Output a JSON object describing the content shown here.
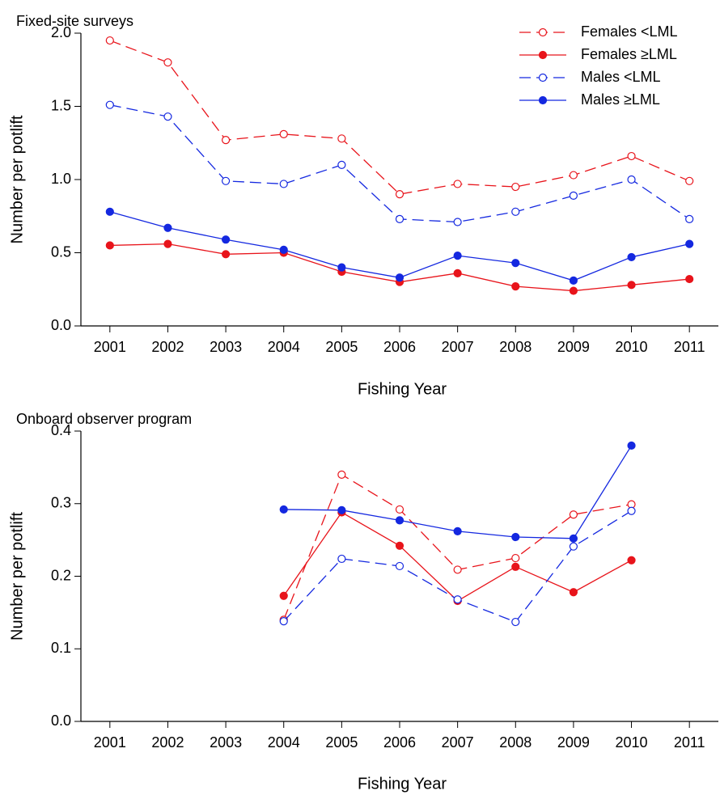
{
  "chart_data": [
    {
      "type": "line",
      "title": "Fixed-site surveys",
      "xlabel": "Fishing Year",
      "ylabel": "Number per potlift",
      "x": [
        2001,
        2002,
        2003,
        2004,
        2005,
        2006,
        2007,
        2008,
        2009,
        2010,
        2011
      ],
      "xlim": [
        2000.5,
        2011.5
      ],
      "xticks": [
        2001,
        2002,
        2003,
        2004,
        2005,
        2006,
        2007,
        2008,
        2009,
        2010,
        2011
      ],
      "ylim": [
        0,
        2
      ],
      "yticks": [
        {
          "value": 0,
          "label": "0.0"
        },
        0.5,
        {
          "value": 1,
          "label": "1.0"
        },
        1.5,
        {
          "value": 2,
          "label": "2.0"
        }
      ],
      "legend": "upper right",
      "series": [
        {
          "name": "Females <LML",
          "color": "#e8141b",
          "marker": "open",
          "dashed": true,
          "values": [
            1.95,
            1.8,
            1.27,
            1.31,
            1.28,
            0.9,
            0.97,
            0.95,
            1.03,
            1.16,
            0.99
          ]
        },
        {
          "name": "Females ≥LML",
          "color": "#e8141b",
          "marker": "filled",
          "dashed": false,
          "values": [
            0.55,
            0.56,
            0.49,
            0.5,
            0.37,
            0.3,
            0.36,
            0.27,
            0.24,
            0.28,
            0.32
          ]
        },
        {
          "name": "Males <LML",
          "color": "#1428e0",
          "marker": "open",
          "dashed": true,
          "values": [
            1.51,
            1.43,
            0.99,
            0.97,
            1.1,
            0.73,
            0.71,
            0.78,
            0.89,
            1.0,
            0.73
          ]
        },
        {
          "name": "Males ≥LML",
          "color": "#1428e0",
          "marker": "filled",
          "dashed": false,
          "values": [
            0.78,
            0.67,
            0.59,
            0.52,
            0.4,
            0.33,
            0.48,
            0.43,
            0.31,
            0.47,
            0.56
          ]
        }
      ]
    },
    {
      "type": "line",
      "title": "Onboard observer program",
      "xlabel": "Fishing Year",
      "ylabel": "Number per potlift",
      "x": [
        2001,
        2002,
        2003,
        2004,
        2005,
        2006,
        2007,
        2008,
        2009,
        2010,
        2011
      ],
      "xlim": [
        2000.5,
        2011.5
      ],
      "xticks": [
        2001,
        2002,
        2003,
        2004,
        2005,
        2006,
        2007,
        2008,
        2009,
        2010,
        2011
      ],
      "ylim": [
        0,
        0.4
      ],
      "yticks": [
        {
          "value": 0,
          "label": "0.0"
        },
        0.1,
        0.2,
        0.3,
        0.4
      ],
      "series": [
        {
          "color": "#e8141b",
          "marker": "open",
          "dashed": true,
          "values": [
            null,
            null,
            null,
            0.14,
            0.34,
            0.292,
            0.209,
            0.225,
            0.285,
            0.299,
            null
          ]
        },
        {
          "color": "#e8141b",
          "marker": "filled",
          "dashed": false,
          "values": [
            null,
            null,
            null,
            0.173,
            0.288,
            0.242,
            0.166,
            0.213,
            0.178,
            0.222,
            null
          ]
        },
        {
          "color": "#1428e0",
          "marker": "open",
          "dashed": true,
          "values": [
            null,
            null,
            null,
            0.138,
            0.224,
            0.214,
            0.168,
            0.137,
            0.241,
            0.29,
            null
          ]
        },
        {
          "color": "#1428e0",
          "marker": "filled",
          "dashed": false,
          "values": [
            null,
            null,
            null,
            0.292,
            0.291,
            0.277,
            0.262,
            0.254,
            0.252,
            0.38,
            null
          ]
        }
      ]
    }
  ]
}
